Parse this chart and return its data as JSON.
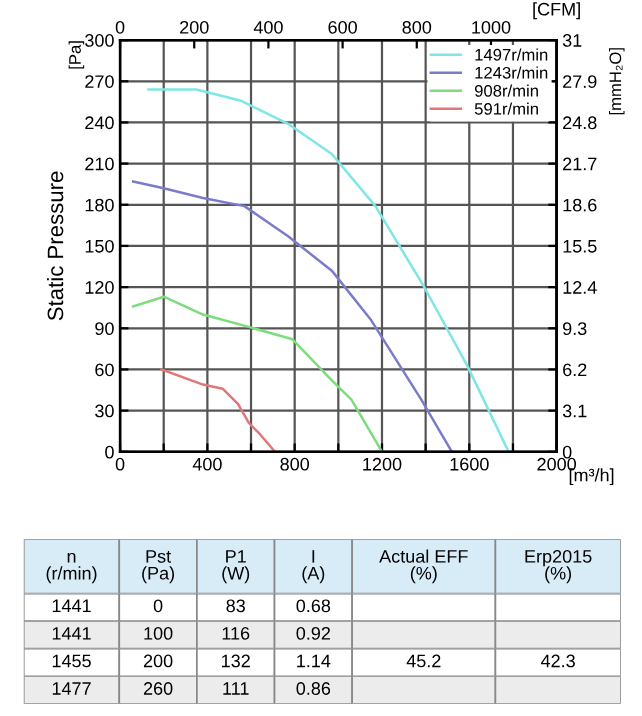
{
  "chart_data": [
    {
      "type": "line",
      "ylabel": "Static Pressure",
      "xlabel": "[m³/h]",
      "x2label": "[CFM]",
      "y2label": "[mmH₂O]",
      "annotations": [
        "[Pa]"
      ],
      "series": [
        {
          "name": "1497r/min",
          "color": "#7fe6e6",
          "x": [
            130,
            350,
            550,
            770,
            970,
            1170,
            1390,
            1590,
            1780
          ],
          "values": [
            264,
            264,
            256,
            239,
            217,
            179,
            121,
            63,
            0
          ]
        },
        {
          "name": "1243r/min",
          "color": "#7b7bcc",
          "x": [
            60,
            200,
            380,
            570,
            770,
            970,
            1150,
            1380,
            1520
          ],
          "values": [
            197,
            192,
            185,
            179,
            157,
            132,
            96,
            38,
            0
          ]
        },
        {
          "name": "908r/min",
          "color": "#7ddc7d",
          "x": [
            60,
            200,
            380,
            590,
            790,
            970,
            1060,
            1200
          ],
          "values": [
            106,
            113,
            100,
            91,
            82,
            52,
            38,
            0
          ]
        },
        {
          "name": "591r/min",
          "color": "#e07878",
          "x": [
            190,
            380,
            470,
            540,
            590,
            640,
            710
          ],
          "values": [
            60,
            49,
            46,
            35,
            21,
            13,
            0
          ]
        }
      ],
      "xlim": [
        0,
        2000
      ],
      "xticks": [
        0,
        {
          "value": 200,
          "label": null
        },
        400,
        {
          "value": 600,
          "label": null
        },
        800,
        {
          "value": 1000,
          "label": null
        },
        1200,
        {
          "value": 1400,
          "label": null
        },
        1600,
        {
          "value": 1800,
          "label": null
        },
        2000
      ],
      "ylim": [
        0,
        300
      ],
      "yticks": [
        0,
        30,
        60,
        90,
        120,
        150,
        180,
        210,
        240,
        270,
        300
      ],
      "x2lim": [
        0,
        1177
      ],
      "x2ticks": [
        0,
        200,
        400,
        600,
        800,
        1000
      ],
      "y2lim": [
        0,
        31
      ],
      "y2ticks": [
        0,
        3.1,
        6.2,
        9.3,
        12.4,
        15.5,
        18.6,
        21.7,
        24.8,
        27.9,
        31
      ],
      "grid": true,
      "legend": "top right",
      "marker": "none",
      "line_style": "solid"
    },
    {
      "type": "other",
      "categories": [
        "n\n(r/min)",
        "Pst\n(Pa)",
        "P1\n(W)",
        "I\n(A)",
        "Actual EFF\n(%)",
        "Erp2015\n(%)"
      ],
      "title": null
    },
    {
      "type": "other",
      "annotations": [
        "1441",
        "0",
        "83",
        "0.68"
      ]
    },
    {
      "type": "other",
      "annotations": [
        "1441",
        "100",
        "116",
        "0.92"
      ]
    },
    {
      "type": "other",
      "annotations": [
        "1455",
        "200",
        "132",
        "1.14",
        "45.2",
        "42.3"
      ]
    },
    {
      "type": "other",
      "annotations": [
        "1477",
        "260",
        "111",
        "0.86"
      ]
    }
  ]
}
